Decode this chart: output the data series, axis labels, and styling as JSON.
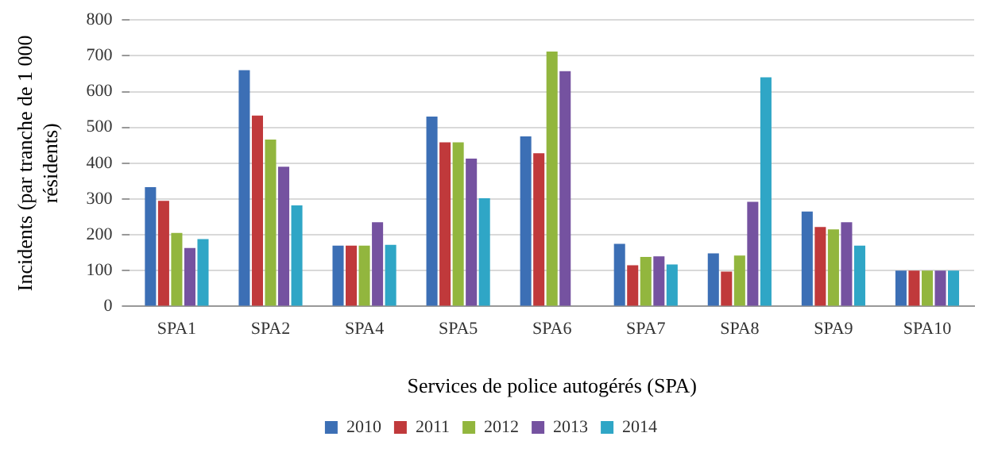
{
  "chart_data": {
    "type": "bar",
    "xlabel": "Services de police autogérés (SPA)",
    "ylabel": "Incidents (par tranche de 1 000 résidents)",
    "categories": [
      "SPA1",
      "SPA2",
      "SPA4",
      "SPA5",
      "SPA6",
      "SPA7",
      "SPA8",
      "SPA9",
      "SPA10"
    ],
    "series": [
      {
        "name": "2010",
        "color": "#3c6fb5",
        "values": [
          333,
          660,
          170,
          530,
          475,
          175,
          148,
          265,
          100
        ]
      },
      {
        "name": "2011",
        "color": "#c0393b",
        "values": [
          295,
          533,
          170,
          458,
          428,
          115,
          97,
          222,
          100
        ]
      },
      {
        "name": "2012",
        "color": "#92b63e",
        "values": [
          205,
          466,
          170,
          458,
          712,
          138,
          142,
          215,
          100
        ]
      },
      {
        "name": "2013",
        "color": "#7552a0",
        "values": [
          163,
          390,
          235,
          413,
          657,
          140,
          292,
          235,
          100
        ]
      },
      {
        "name": "2014",
        "color": "#2fa6c6",
        "values": [
          188,
          282,
          172,
          302,
          null,
          117,
          640,
          170,
          100
        ]
      }
    ],
    "ylim": [
      0,
      800
    ],
    "yticks": [
      0,
      100,
      200,
      300,
      400,
      500,
      600,
      700,
      800
    ],
    "grid": "y",
    "legend": "bottom"
  }
}
